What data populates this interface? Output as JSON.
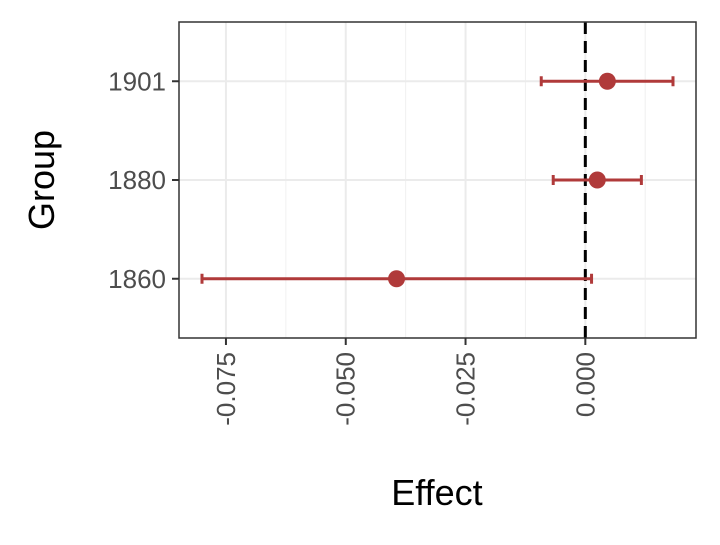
{
  "chart_data": {
    "type": "errorbar",
    "x_label": "Effect",
    "y_label": "Group",
    "categories": [
      "1860",
      "1880",
      "1901"
    ],
    "series": [
      {
        "color": "#b03a3a",
        "values": [
          -0.0394,
          0.0025,
          0.0046
        ],
        "lower": [
          -0.08,
          -0.0067,
          -0.0092
        ],
        "upper": [
          0.0013,
          0.0117,
          0.0183
        ]
      }
    ],
    "xlim": [
      -0.0848,
      0.0231
    ],
    "xticks": [
      {
        "value": -0.075,
        "label": "-0.075"
      },
      {
        "value": -0.05,
        "label": "-0.050"
      },
      {
        "value": -0.025,
        "label": "-0.025"
      },
      {
        "value": 0,
        "label": "0.000"
      }
    ],
    "ref_line": 0,
    "grid": true
  }
}
